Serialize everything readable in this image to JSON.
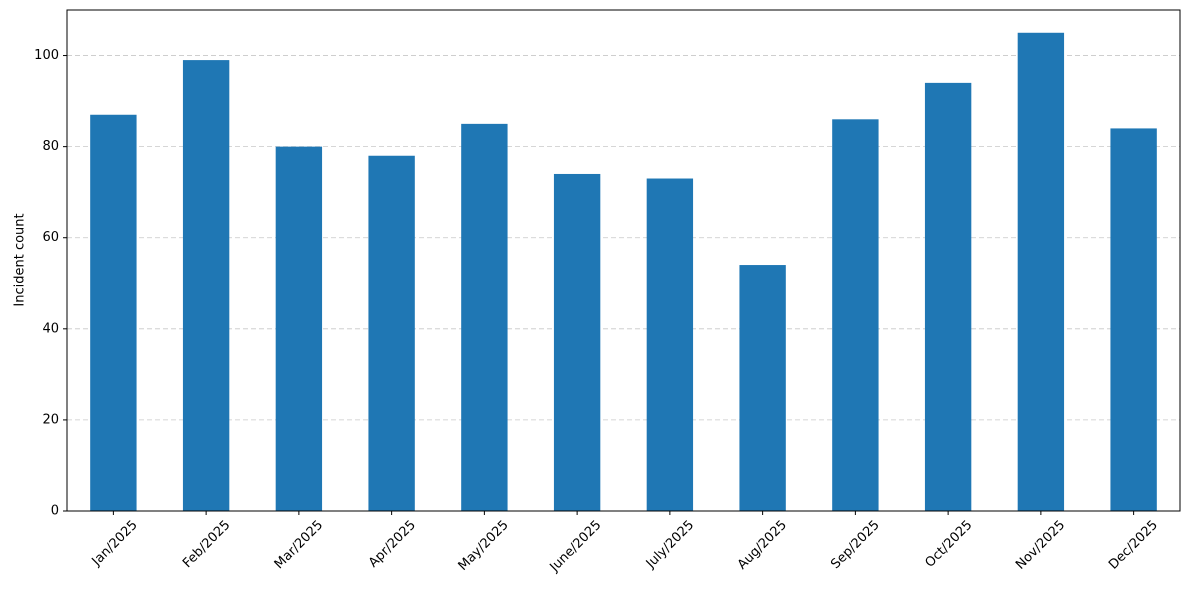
{
  "chart_data": {
    "type": "bar",
    "y_label": "Incident count",
    "categories": [
      "Jan/2025",
      "Feb/2025",
      "Mar/2025",
      "Apr/2025",
      "May/2025",
      "June/2025",
      "July/2025",
      "Aug/2025",
      "Sep/2025",
      "Oct/2025",
      "Nov/2025",
      "Dec/2025"
    ],
    "values": [
      87,
      99,
      80,
      78,
      85,
      74,
      73,
      54,
      86,
      94,
      105,
      84
    ],
    "color": "#1f77b4",
    "ylim": [
      0,
      110
    ],
    "yticks": [
      0,
      20,
      40,
      60,
      80,
      100
    ],
    "grid": true
  }
}
